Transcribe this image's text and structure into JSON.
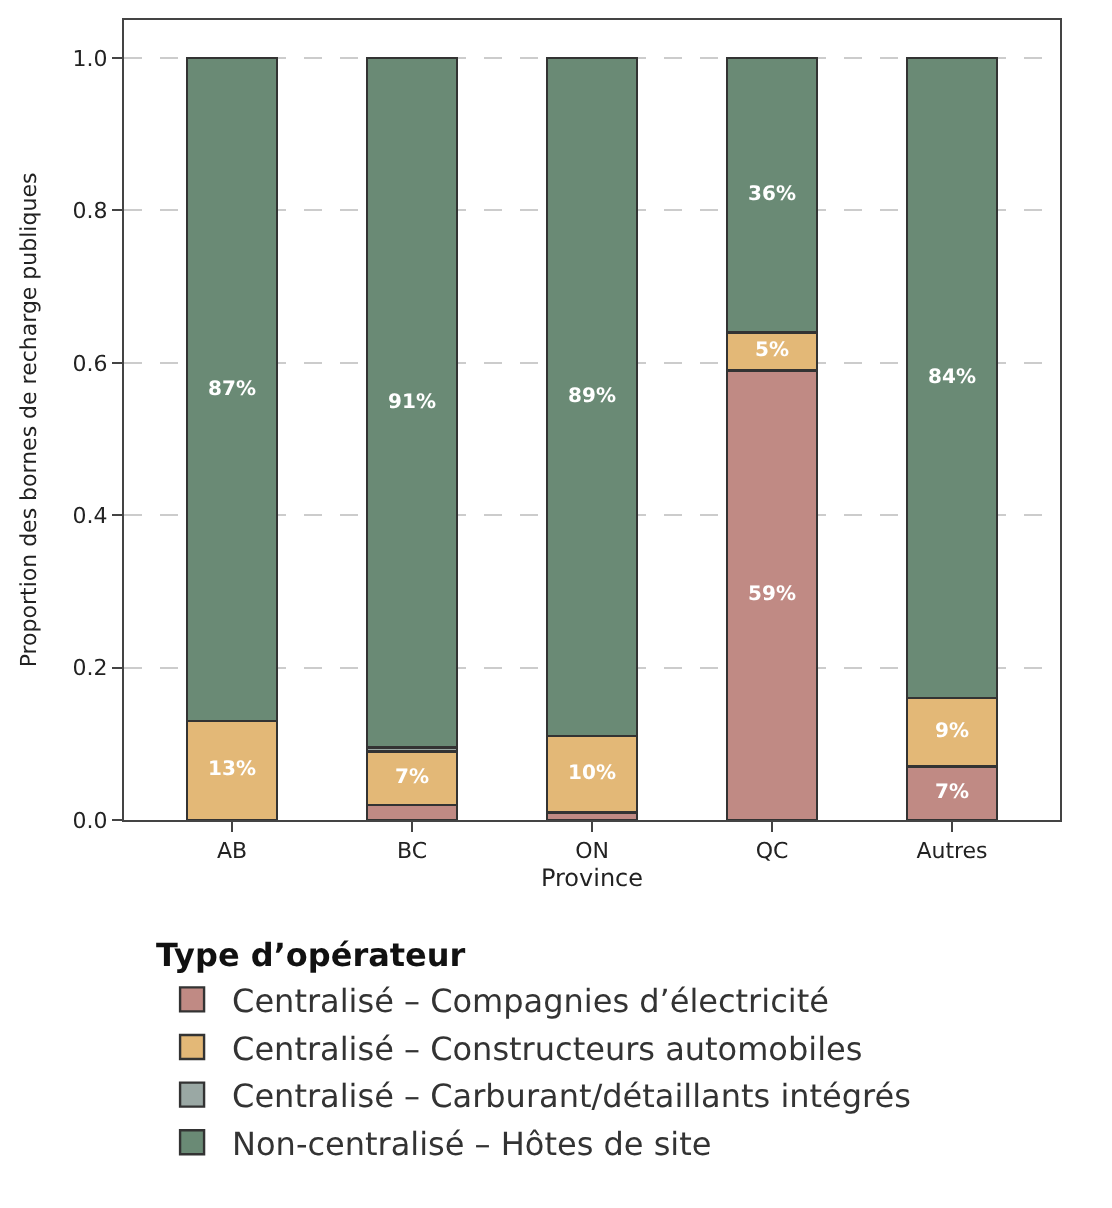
{
  "chart_data": {
    "type": "bar",
    "stacked": true,
    "xlabel": "Province",
    "ylabel": "Proportion des bornes de recharge publiques",
    "legend_title": "Type d’opérateur",
    "categories": [
      "AB",
      "BC",
      "ON",
      "QC",
      "Autres"
    ],
    "series": [
      {
        "name": "Centralisé – Compagnies d’électricité",
        "color": "#c08a84",
        "values": [
          0,
          0.02,
          0.01,
          0.59,
          0.07
        ],
        "value_labels": [
          null,
          null,
          null,
          "59%",
          "7%"
        ]
      },
      {
        "name": "Centralisé – Constructeurs automobiles",
        "color": "#e3b877",
        "values": [
          0.13,
          0.07,
          0.1,
          0.05,
          0.09
        ],
        "value_labels": [
          "13%",
          "7%",
          "10%",
          "5%",
          "9%"
        ]
      },
      {
        "name": "Centralisé – Carburant/détaillants intégrés",
        "color": "#9aa8a4",
        "values": [
          0,
          0.005,
          0,
          0,
          0
        ],
        "value_labels": [
          null,
          null,
          null,
          null,
          null
        ]
      },
      {
        "name": "Non-centralisé – Hôtes de site",
        "color": "#6a8a75",
        "values": [
          0.87,
          0.905,
          0.89,
          0.36,
          0.84
        ],
        "value_labels": [
          "87%",
          "91%",
          "89%",
          "36%",
          "84%"
        ]
      }
    ],
    "ylim": [
      0,
      1.05
    ],
    "yticks": [
      {
        "value": 0,
        "label": "0.0"
      },
      0.2,
      0.4,
      0.6,
      0.8,
      {
        "value": 1,
        "label": "1.0"
      }
    ],
    "grid": "y",
    "legend": "bottom"
  }
}
